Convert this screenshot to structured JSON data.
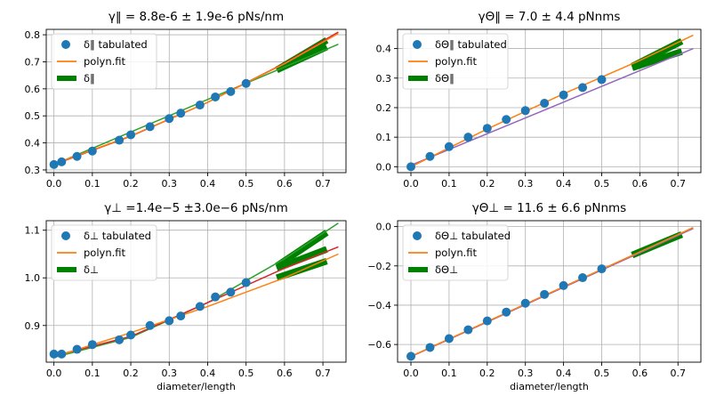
{
  "figure": {
    "colors": {
      "tabulated": "#1f77b4",
      "fit": "#ff7f0e",
      "band": "#008000",
      "line_red": "#d62728",
      "line_green": "#2ca02c",
      "line_purple": "#9467bd",
      "grid": "#b0b0b0"
    }
  },
  "chart_data": [
    {
      "type": "scatter",
      "title": "γ‖ =  8.8e-6   ± 1.9e-6  pNs/nm",
      "xlabel": "",
      "ylabel": "",
      "xlim": [
        -0.02,
        0.76
      ],
      "ylim": [
        0.29,
        0.82
      ],
      "xticks": [
        0.0,
        0.1,
        0.2,
        0.3,
        0.4,
        0.5,
        0.6,
        0.7
      ],
      "xtick_labels": [
        "0.0",
        "0.1",
        "0.2",
        "0.3",
        "0.4",
        "0.5",
        "0.6",
        "0.7"
      ],
      "yticks": [
        0.3,
        0.4,
        0.5,
        0.6,
        0.7,
        0.8
      ],
      "ytick_labels": [
        "0.3",
        "0.4",
        "0.5",
        "0.6",
        "0.7",
        "0.8"
      ],
      "legend": [
        "δ‖ tabulated",
        "polyn.fit",
        "δ‖"
      ],
      "legend_position": "top-left",
      "tabulated": {
        "x": [
          0.0,
          0.02,
          0.06,
          0.1,
          0.17,
          0.2,
          0.25,
          0.3,
          0.33,
          0.38,
          0.42,
          0.46,
          0.5
        ],
        "y": [
          0.32,
          0.33,
          0.35,
          0.37,
          0.41,
          0.43,
          0.46,
          0.49,
          0.51,
          0.54,
          0.57,
          0.59,
          0.62
        ]
      },
      "lines": [
        {
          "color_key": "line_green",
          "x": [
            0.0,
            0.74
          ],
          "y": [
            0.32,
            0.765
          ]
        },
        {
          "color_key": "line_red",
          "x": [
            0.0,
            0.2,
            0.4,
            0.6,
            0.74
          ],
          "y": [
            0.32,
            0.425,
            0.55,
            0.695,
            0.81
          ]
        },
        {
          "color_key": "fit",
          "x": [
            0.0,
            0.2,
            0.4,
            0.6,
            0.74
          ],
          "y": [
            0.322,
            0.426,
            0.55,
            0.693,
            0.805
          ]
        }
      ],
      "bands": [
        {
          "x": [
            0.58,
            0.71
          ],
          "y": [
            0.67,
            0.78
          ]
        },
        {
          "x": [
            0.58,
            0.71
          ],
          "y": [
            0.67,
            0.755
          ]
        }
      ]
    },
    {
      "type": "scatter",
      "title": "γΘ‖ = 7.0 ± 4.4 pNnms",
      "xlabel": "",
      "ylabel": "",
      "xlim": [
        -0.035,
        0.76
      ],
      "ylim": [
        -0.02,
        0.465
      ],
      "xticks": [
        0.0,
        0.1,
        0.2,
        0.3,
        0.4,
        0.5,
        0.6,
        0.7
      ],
      "xtick_labels": [
        "0.0",
        "0.1",
        "0.2",
        "0.3",
        "0.4",
        "0.5",
        "0.6",
        "0.7"
      ],
      "yticks": [
        0.0,
        0.1,
        0.2,
        0.3,
        0.4
      ],
      "ytick_labels": [
        "0.0",
        "0.1",
        "0.2",
        "0.3",
        "0.4"
      ],
      "legend": [
        "δΘ‖ tabulated",
        "polyn.fit",
        "δΘ‖"
      ],
      "legend_position": "top-left",
      "tabulated": {
        "x": [
          0.0,
          0.05,
          0.1,
          0.15,
          0.2,
          0.25,
          0.3,
          0.35,
          0.4,
          0.45,
          0.5
        ],
        "y": [
          0.0,
          0.035,
          0.068,
          0.1,
          0.13,
          0.16,
          0.19,
          0.215,
          0.243,
          0.268,
          0.295
        ]
      },
      "lines": [
        {
          "color_key": "line_purple",
          "x": [
            0.0,
            0.74
          ],
          "y": [
            0.005,
            0.4
          ]
        },
        {
          "color_key": "fit",
          "x": [
            0.0,
            0.2,
            0.4,
            0.6,
            0.74
          ],
          "y": [
            0.0,
            0.128,
            0.247,
            0.36,
            0.445
          ]
        }
      ],
      "bands": [
        {
          "x": [
            0.58,
            0.71
          ],
          "y": [
            0.34,
            0.425
          ]
        },
        {
          "x": [
            0.58,
            0.71
          ],
          "y": [
            0.335,
            0.39
          ]
        }
      ]
    },
    {
      "type": "scatter",
      "title": "γ⊥ =1.4e−5   ±3.0e−6   pNs/nm",
      "xlabel": "diameter/length",
      "ylabel": "",
      "xlim": [
        -0.02,
        0.76
      ],
      "ylim": [
        0.823,
        1.12
      ],
      "xticks": [
        0.0,
        0.1,
        0.2,
        0.3,
        0.4,
        0.5,
        0.6,
        0.7
      ],
      "xtick_labels": [
        "0.0",
        "0.1",
        "0.2",
        "0.3",
        "0.4",
        "0.5",
        "0.6",
        "0.7"
      ],
      "yticks": [
        0.9,
        1.0,
        1.1
      ],
      "ytick_labels": [
        "0.9",
        "1.0",
        "1.1"
      ],
      "legend": [
        "δ⊥ tabulated",
        "polyn.fit",
        "δ⊥"
      ],
      "legend_position": "top-left",
      "tabulated": {
        "x": [
          0.0,
          0.02,
          0.06,
          0.1,
          0.17,
          0.2,
          0.25,
          0.3,
          0.33,
          0.38,
          0.42,
          0.46,
          0.5
        ],
        "y": [
          0.84,
          0.84,
          0.85,
          0.86,
          0.87,
          0.88,
          0.9,
          0.91,
          0.92,
          0.94,
          0.96,
          0.97,
          0.99
        ]
      },
      "lines": [
        {
          "color_key": "line_green",
          "x": [
            0.0,
            0.2,
            0.4,
            0.6,
            0.74
          ],
          "y": [
            0.833,
            0.875,
            0.948,
            1.04,
            1.115
          ]
        },
        {
          "color_key": "line_red",
          "x": [
            0.0,
            0.2,
            0.4,
            0.6,
            0.74
          ],
          "y": [
            0.836,
            0.877,
            0.948,
            1.02,
            1.065
          ]
        },
        {
          "color_key": "fit",
          "x": [
            0.0,
            0.2,
            0.4,
            0.6,
            0.74
          ],
          "y": [
            0.834,
            0.885,
            0.94,
            1.0,
            1.05
          ]
        }
      ],
      "bands": [
        {
          "x": [
            0.58,
            0.71
          ],
          "y": [
            1.025,
            1.095
          ]
        },
        {
          "x": [
            0.58,
            0.71
          ],
          "y": [
            1.02,
            1.06
          ]
        },
        {
          "x": [
            0.58,
            0.71
          ],
          "y": [
            1.0,
            1.035
          ]
        }
      ]
    },
    {
      "type": "scatter",
      "title": "γΘ⊥ = 11.6 ± 6.6 pNnms",
      "xlabel": "diameter/length",
      "ylabel": "",
      "xlim": [
        -0.035,
        0.76
      ],
      "ylim": [
        -0.69,
        0.03
      ],
      "xticks": [
        0.0,
        0.1,
        0.2,
        0.3,
        0.4,
        0.5,
        0.6,
        0.7
      ],
      "xtick_labels": [
        "0.0",
        "0.1",
        "0.2",
        "0.3",
        "0.4",
        "0.5",
        "0.6",
        "0.7"
      ],
      "yticks": [
        -0.6,
        -0.4,
        -0.2,
        0.0
      ],
      "ytick_labels": [
        "−0.6",
        "−0.4",
        "−0.2",
        "0.0"
      ],
      "legend": [
        "δΘ⊥ tabulated",
        "polyn.fit",
        "δΘ⊥"
      ],
      "legend_position": "top-left",
      "tabulated": {
        "x": [
          0.0,
          0.05,
          0.1,
          0.15,
          0.2,
          0.25,
          0.3,
          0.35,
          0.4,
          0.45,
          0.5
        ],
        "y": [
          -0.66,
          -0.615,
          -0.57,
          -0.525,
          -0.48,
          -0.435,
          -0.39,
          -0.345,
          -0.3,
          -0.26,
          -0.215
        ]
      },
      "lines": [
        {
          "color_key": "line_purple",
          "x": [
            0.0,
            0.74
          ],
          "y": [
            -0.662,
            -0.01
          ]
        },
        {
          "color_key": "fit",
          "x": [
            0.0,
            0.74
          ],
          "y": [
            -0.66,
            -0.005
          ]
        }
      ],
      "bands": [
        {
          "x": [
            0.58,
            0.71
          ],
          "y": [
            -0.145,
            -0.04
          ]
        }
      ]
    }
  ]
}
